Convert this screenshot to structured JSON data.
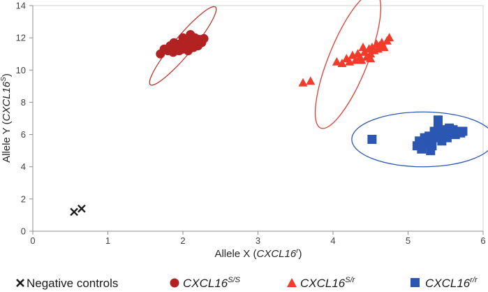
{
  "chart_data": {
    "type": "scatter",
    "xlabel": {
      "prefix": "Allele X (",
      "gene": "CXCL16",
      "sup": "r",
      "suffix": ")"
    },
    "ylabel": {
      "prefix": "Allele Y (",
      "gene": "CXCL16",
      "sup": "S",
      "suffix": ")"
    },
    "xlim": [
      0,
      6
    ],
    "ylim": [
      0,
      14
    ],
    "x_ticks": [
      "0",
      "1",
      "2",
      "3",
      "4",
      "5",
      "6"
    ],
    "y_ticks": [
      "0",
      "2",
      "4",
      "6",
      "8",
      "10",
      "12",
      "14"
    ],
    "grid": false,
    "legend_position": "bottom",
    "series": [
      {
        "name": "Negative controls",
        "marker": "x",
        "color": "#1a1a1a",
        "points": [
          [
            0.55,
            1.2
          ],
          [
            0.65,
            1.4
          ]
        ]
      },
      {
        "name": "CXCL16 S/S",
        "gene": "CXCL16",
        "sup": "S/S",
        "marker": "circle",
        "color": "#b22222",
        "points": [
          [
            1.7,
            11.0
          ],
          [
            1.75,
            11.3
          ],
          [
            1.8,
            11.2
          ],
          [
            1.83,
            11.5
          ],
          [
            1.87,
            11.1
          ],
          [
            1.9,
            11.4
          ],
          [
            1.93,
            11.6
          ],
          [
            1.95,
            11.2
          ],
          [
            1.98,
            11.5
          ],
          [
            2.0,
            11.3
          ],
          [
            2.02,
            11.8
          ],
          [
            2.05,
            11.6
          ],
          [
            2.07,
            11.2
          ],
          [
            2.09,
            11.9
          ],
          [
            2.1,
            12.2
          ],
          [
            2.12,
            11.7
          ],
          [
            2.14,
            11.4
          ],
          [
            2.16,
            12.0
          ],
          [
            2.18,
            11.8
          ],
          [
            2.2,
            11.5
          ],
          [
            2.22,
            11.9
          ],
          [
            2.25,
            11.7
          ],
          [
            2.28,
            11.95
          ],
          [
            1.88,
            11.7
          ],
          [
            2.0,
            12.0
          ]
        ]
      },
      {
        "name": "CXCL16 S/r",
        "gene": "CXCL16",
        "sup": "S/r",
        "marker": "triangle",
        "color": "#f23b2b",
        "points": [
          [
            3.6,
            9.2
          ],
          [
            3.7,
            9.3
          ],
          [
            4.05,
            10.5
          ],
          [
            4.12,
            10.4
          ],
          [
            4.18,
            10.7
          ],
          [
            4.22,
            10.5
          ],
          [
            4.26,
            10.9
          ],
          [
            4.3,
            10.6
          ],
          [
            4.33,
            11.0
          ],
          [
            4.36,
            10.8
          ],
          [
            4.38,
            10.6
          ],
          [
            4.42,
            11.1
          ],
          [
            4.45,
            10.8
          ],
          [
            4.48,
            11.3
          ],
          [
            4.5,
            11.0
          ],
          [
            4.52,
            11.4
          ],
          [
            4.55,
            11.2
          ],
          [
            4.58,
            11.6
          ],
          [
            4.6,
            11.3
          ],
          [
            4.62,
            11.5
          ],
          [
            4.65,
            11.7
          ],
          [
            4.68,
            11.4
          ],
          [
            4.72,
            11.8
          ],
          [
            4.75,
            12.0
          ],
          [
            4.4,
            11.4
          ],
          [
            4.5,
            10.7
          ]
        ]
      },
      {
        "name": "CXCL16 r/r",
        "gene": "CXCL16",
        "sup": "r/r",
        "marker": "square",
        "color": "#2b57b3",
        "points": [
          [
            4.52,
            5.7
          ],
          [
            5.12,
            5.3
          ],
          [
            5.15,
            5.6
          ],
          [
            5.18,
            5.1
          ],
          [
            5.2,
            5.5
          ],
          [
            5.22,
            5.8
          ],
          [
            5.25,
            5.4
          ],
          [
            5.28,
            5.9
          ],
          [
            5.3,
            5.6
          ],
          [
            5.32,
            5.3
          ],
          [
            5.35,
            6.2
          ],
          [
            5.38,
            5.8
          ],
          [
            5.4,
            6.5
          ],
          [
            5.42,
            6.0
          ],
          [
            5.45,
            5.6
          ],
          [
            5.48,
            6.3
          ],
          [
            5.5,
            6.0
          ],
          [
            5.52,
            5.8
          ],
          [
            5.55,
            6.4
          ],
          [
            5.58,
            6.1
          ],
          [
            5.6,
            6.3
          ],
          [
            5.63,
            6.0
          ],
          [
            5.66,
            6.2
          ],
          [
            5.7,
            6.1
          ],
          [
            5.73,
            6.2
          ],
          [
            5.4,
            6.9
          ],
          [
            5.3,
            5.0
          ]
        ]
      }
    ],
    "ellipses": [
      {
        "series": "CXCL16 S/S",
        "cx": 2.0,
        "cy": 11.5,
        "rx": 0.5,
        "ry": 1.05,
        "rotate": -50,
        "color": "#c0392b"
      },
      {
        "series": "CXCL16 S/r",
        "cx": 4.2,
        "cy": 10.6,
        "rx": 0.72,
        "ry": 2.2,
        "rotate": -68,
        "color": "#e03c31"
      },
      {
        "series": "CXCL16 r/r",
        "cx": 5.2,
        "cy": 5.7,
        "rx": 0.95,
        "ry": 1.7,
        "rotate": 0,
        "color": "#2b57b3"
      }
    ]
  }
}
